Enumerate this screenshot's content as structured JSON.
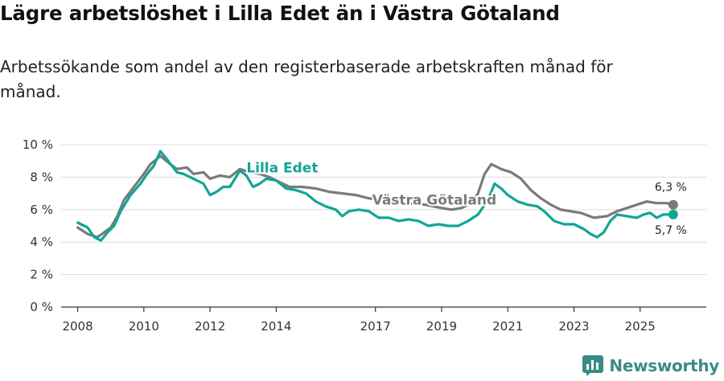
{
  "title": "Lägre arbetslöshet i Lilla Edet än i Västra Götaland",
  "subtitle": "Arbetssökande som andel av den registerbaserade arbetskraften månad för månad.",
  "brand": {
    "name": "Newsworthy",
    "icon": "newsworthy-logo-icon"
  },
  "colors": {
    "lilla_edet": "#11a596",
    "vastra_gotaland": "#7a7a7a",
    "grid": "#dcdcdc",
    "axis": "#333333"
  },
  "chart_data": {
    "type": "line",
    "title": "Lägre arbetslöshet i Lilla Edet än i Västra Götaland",
    "xlabel": "",
    "ylabel": "",
    "xlim": [
      2007.5,
      2027.0
    ],
    "ylim": [
      0,
      10
    ],
    "yticks": [
      0,
      2,
      4,
      6,
      8,
      10
    ],
    "ytick_labels": [
      "0 %",
      "2 %",
      "4 %",
      "6 %",
      "8 %",
      "10 %"
    ],
    "xticks": [
      2008,
      2010,
      2012,
      2014,
      2017,
      2019,
      2021,
      2023,
      2025
    ],
    "xtick_labels": [
      "2008",
      "2010",
      "2012",
      "2014",
      "2017",
      "2019",
      "2021",
      "2023",
      "2025"
    ],
    "grid": true,
    "series": [
      {
        "name": "Västra Götaland",
        "color": "#7a7a7a",
        "label_at": [
          2016.9,
          6.6
        ],
        "end_label": "6,3 %",
        "points": [
          [
            2008.0,
            4.9
          ],
          [
            2008.3,
            4.5
          ],
          [
            2008.6,
            4.3
          ],
          [
            2008.8,
            4.6
          ],
          [
            2009.0,
            4.9
          ],
          [
            2009.2,
            5.6
          ],
          [
            2009.4,
            6.6
          ],
          [
            2009.7,
            7.4
          ],
          [
            2010.0,
            8.2
          ],
          [
            2010.2,
            8.8
          ],
          [
            2010.5,
            9.3
          ],
          [
            2010.8,
            8.8
          ],
          [
            2011.0,
            8.5
          ],
          [
            2011.3,
            8.6
          ],
          [
            2011.5,
            8.2
          ],
          [
            2011.8,
            8.3
          ],
          [
            2012.0,
            7.9
          ],
          [
            2012.3,
            8.1
          ],
          [
            2012.6,
            8.0
          ],
          [
            2012.9,
            8.5
          ],
          [
            2013.2,
            8.3
          ],
          [
            2013.5,
            8.2
          ],
          [
            2013.8,
            8.0
          ],
          [
            2014.1,
            7.7
          ],
          [
            2014.4,
            7.4
          ],
          [
            2014.8,
            7.4
          ],
          [
            2015.2,
            7.3
          ],
          [
            2015.6,
            7.1
          ],
          [
            2016.0,
            7.0
          ],
          [
            2016.4,
            6.9
          ],
          [
            2016.8,
            6.7
          ],
          [
            2017.2,
            6.6
          ],
          [
            2017.6,
            6.5
          ],
          [
            2018.0,
            6.4
          ],
          [
            2018.5,
            6.3
          ],
          [
            2019.0,
            6.1
          ],
          [
            2019.3,
            6.0
          ],
          [
            2019.6,
            6.1
          ],
          [
            2019.9,
            6.4
          ],
          [
            2020.1,
            7.0
          ],
          [
            2020.3,
            8.2
          ],
          [
            2020.5,
            8.8
          ],
          [
            2020.8,
            8.5
          ],
          [
            2021.1,
            8.3
          ],
          [
            2021.4,
            7.9
          ],
          [
            2021.7,
            7.2
          ],
          [
            2022.0,
            6.7
          ],
          [
            2022.3,
            6.3
          ],
          [
            2022.6,
            6.0
          ],
          [
            2022.9,
            5.9
          ],
          [
            2023.2,
            5.8
          ],
          [
            2023.6,
            5.5
          ],
          [
            2024.0,
            5.6
          ],
          [
            2024.3,
            5.9
          ],
          [
            2024.6,
            6.1
          ],
          [
            2024.9,
            6.3
          ],
          [
            2025.2,
            6.5
          ],
          [
            2025.5,
            6.4
          ],
          [
            2025.8,
            6.4
          ],
          [
            2026.0,
            6.3
          ]
        ]
      },
      {
        "name": "Lilla Edet",
        "color": "#11a596",
        "label_at": [
          2013.1,
          8.6
        ],
        "end_label": "5,7 %",
        "points": [
          [
            2008.0,
            5.2
          ],
          [
            2008.3,
            4.9
          ],
          [
            2008.5,
            4.3
          ],
          [
            2008.7,
            4.1
          ],
          [
            2008.9,
            4.6
          ],
          [
            2009.1,
            5.0
          ],
          [
            2009.3,
            5.9
          ],
          [
            2009.6,
            6.9
          ],
          [
            2009.9,
            7.6
          ],
          [
            2010.1,
            8.2
          ],
          [
            2010.3,
            8.7
          ],
          [
            2010.5,
            9.6
          ],
          [
            2010.7,
            9.1
          ],
          [
            2011.0,
            8.3
          ],
          [
            2011.2,
            8.2
          ],
          [
            2011.5,
            7.9
          ],
          [
            2011.8,
            7.6
          ],
          [
            2012.0,
            6.9
          ],
          [
            2012.2,
            7.1
          ],
          [
            2012.4,
            7.4
          ],
          [
            2012.6,
            7.4
          ],
          [
            2012.9,
            8.4
          ],
          [
            2013.1,
            8.1
          ],
          [
            2013.3,
            7.4
          ],
          [
            2013.5,
            7.6
          ],
          [
            2013.7,
            7.9
          ],
          [
            2014.0,
            7.8
          ],
          [
            2014.3,
            7.3
          ],
          [
            2014.6,
            7.2
          ],
          [
            2014.9,
            7.0
          ],
          [
            2015.2,
            6.5
          ],
          [
            2015.5,
            6.2
          ],
          [
            2015.8,
            6.0
          ],
          [
            2016.0,
            5.6
          ],
          [
            2016.2,
            5.9
          ],
          [
            2016.5,
            6.0
          ],
          [
            2016.8,
            5.9
          ],
          [
            2017.1,
            5.5
          ],
          [
            2017.4,
            5.5
          ],
          [
            2017.7,
            5.3
          ],
          [
            2018.0,
            5.4
          ],
          [
            2018.3,
            5.3
          ],
          [
            2018.6,
            5.0
          ],
          [
            2018.9,
            5.1
          ],
          [
            2019.2,
            5.0
          ],
          [
            2019.5,
            5.0
          ],
          [
            2019.8,
            5.3
          ],
          [
            2020.1,
            5.7
          ],
          [
            2020.4,
            6.6
          ],
          [
            2020.6,
            7.6
          ],
          [
            2020.8,
            7.3
          ],
          [
            2021.0,
            6.9
          ],
          [
            2021.3,
            6.5
          ],
          [
            2021.6,
            6.3
          ],
          [
            2021.9,
            6.2
          ],
          [
            2022.1,
            5.9
          ],
          [
            2022.4,
            5.3
          ],
          [
            2022.7,
            5.1
          ],
          [
            2023.0,
            5.1
          ],
          [
            2023.3,
            4.8
          ],
          [
            2023.5,
            4.5
          ],
          [
            2023.7,
            4.3
          ],
          [
            2023.9,
            4.6
          ],
          [
            2024.1,
            5.3
          ],
          [
            2024.3,
            5.7
          ],
          [
            2024.6,
            5.6
          ],
          [
            2024.9,
            5.5
          ],
          [
            2025.1,
            5.7
          ],
          [
            2025.3,
            5.8
          ],
          [
            2025.5,
            5.5
          ],
          [
            2025.7,
            5.7
          ],
          [
            2026.0,
            5.7
          ]
        ]
      }
    ]
  }
}
